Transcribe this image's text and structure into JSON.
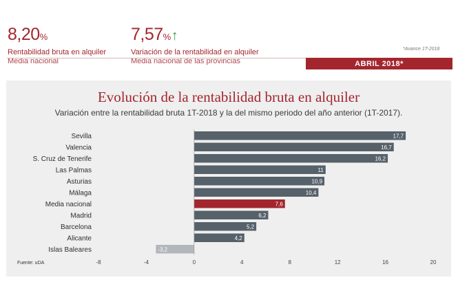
{
  "kpis": [
    {
      "value": "8,20",
      "unit": "%",
      "label": "Rentabilidad bruta en alquiler",
      "sublabel": "Media nacional"
    },
    {
      "value": "7,57",
      "unit": "%",
      "label": "Variación de la rentabilidad en alquiler",
      "sublabel": "Media nacional de las provincias"
    }
  ],
  "note": "*Avance 1T-2018",
  "date_banner": "ABRIL 2018*",
  "source": "Fuente: uDA",
  "colors": {
    "accent": "#a3262e",
    "bar": "#56616a",
    "bar_negative": "#b3b7bb",
    "up_arrow": "#3c9a4a"
  },
  "chart_data": {
    "type": "bar",
    "orientation": "horizontal",
    "title": "Evolución de la rentabilidad bruta en alquiler",
    "subtitle": "Variación entre la rentabilidad bruta 1T-2018 y la del mismo periodo del año anterior (1T-2017).",
    "categories": [
      "Sevilla",
      "Valencia",
      "S. Cruz de Tenerife",
      "Las Palmas",
      "Asturias",
      "Málaga",
      "Media nacional",
      "Madrid",
      "Barcelona",
      "Alicante",
      "Islas Baleares"
    ],
    "values": [
      17.7,
      16.7,
      16.2,
      11,
      10.9,
      10.4,
      7.6,
      6.2,
      5.2,
      4.2,
      -3.2
    ],
    "value_labels": [
      "17,7",
      "16,7",
      "16,2",
      "11",
      "10,9",
      "10,4",
      "7,6",
      "6,2",
      "5,2",
      "4,2",
      "-3,2"
    ],
    "highlight": "Media nacional",
    "xlim": [
      -8,
      20
    ],
    "xticks": [
      -8,
      -4,
      0,
      4,
      8,
      12,
      16,
      20
    ],
    "grid": false,
    "xlabel": "",
    "ylabel": ""
  }
}
